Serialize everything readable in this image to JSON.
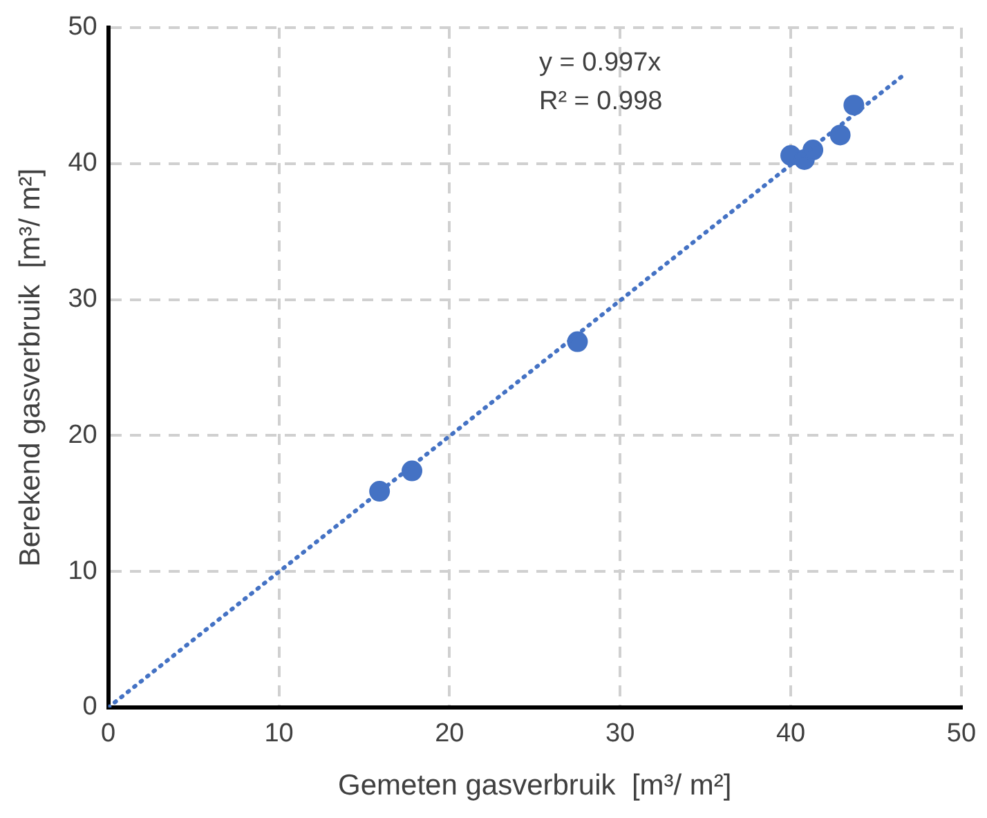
{
  "chart_data": {
    "type": "scatter",
    "xlabel": "Gemeten gasverbruik  [m³/ m²]",
    "ylabel": "Berekend gasverbruik  [m³/ m²]",
    "xlim": [
      0,
      50
    ],
    "ylim": [
      0,
      50
    ],
    "xticks": [
      0,
      10,
      20,
      30,
      40,
      50
    ],
    "yticks": [
      0,
      10,
      20,
      30,
      40,
      50
    ],
    "grid": true,
    "legend": false,
    "marker": "circle",
    "series": [
      {
        "color": "#4472c4",
        "x": [
          15.9,
          17.8,
          27.5,
          40.0,
          40.8,
          41.3,
          42.9,
          43.7
        ],
        "values": [
          15.9,
          17.4,
          26.9,
          40.6,
          40.3,
          41.0,
          42.1,
          44.3
        ]
      },
      {
        "type": "line",
        "color": "#4472c4",
        "line_style": "dotted",
        "marker": "none",
        "x": [
          0,
          46.5
        ],
        "values": [
          0,
          46.4
        ]
      }
    ],
    "annotations": [
      "y = 0.997x",
      "R² = 0.998"
    ]
  }
}
